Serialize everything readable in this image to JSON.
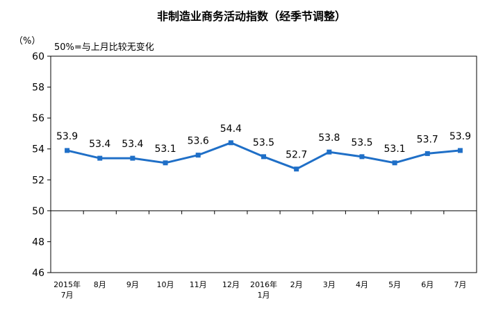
{
  "chart_data": {
    "type": "line",
    "title": "非制造业商务活动指数（经季节调整）",
    "unit_label": "（%）",
    "note": "50%=与上月比较无变化",
    "categories": [
      [
        "2015年",
        "7月"
      ],
      [
        "8月"
      ],
      [
        "9月"
      ],
      [
        "10月"
      ],
      [
        "11月"
      ],
      [
        "12月"
      ],
      [
        "2016年",
        "1月"
      ],
      [
        "2月"
      ],
      [
        "3月"
      ],
      [
        "4月"
      ],
      [
        "5月"
      ],
      [
        "6月"
      ],
      [
        "7月"
      ]
    ],
    "series": [
      {
        "values": [
          53.9,
          53.4,
          53.4,
          53.1,
          53.6,
          54.4,
          53.5,
          52.7,
          53.8,
          53.5,
          53.1,
          53.7,
          53.9
        ]
      }
    ],
    "value_labels": [
      "53.9",
      "53.4",
      "53.4",
      "53.1",
      "53.6",
      "54.4",
      "53.5",
      "52.7",
      "53.8",
      "53.5",
      "53.1",
      "53.7",
      "53.9"
    ],
    "ylim": [
      46,
      60
    ],
    "yticks": [
      46,
      48,
      50,
      52,
      54,
      56,
      58,
      60
    ],
    "baseline": 50,
    "grid": false,
    "line_color": "#1f6fc7"
  }
}
